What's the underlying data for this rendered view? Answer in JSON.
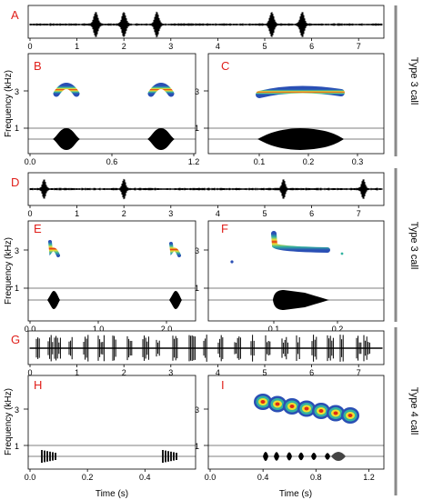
{
  "figure": {
    "panel_letters": [
      "A",
      "B",
      "C",
      "D",
      "E",
      "F",
      "G",
      "H",
      "I"
    ],
    "y_axis_label": "Frequency (kHz)",
    "x_axis_label": "Time (s)",
    "side_labels": [
      "Type 3 call",
      "Type 3 call",
      "Type 4 call"
    ],
    "colors": {
      "panel_letter": "#e0201b",
      "waveform": "#000000",
      "bracket": "#8a8a8a",
      "axis": "#000000"
    },
    "freq_ticks": [
      "3",
      "1"
    ]
  },
  "chart_data": [
    {
      "panel": "A",
      "type": "waveform",
      "xlim": [
        0,
        7.5
      ],
      "x_ticks": [
        "0",
        "1",
        "2",
        "3",
        "4",
        "5",
        "6",
        "7"
      ],
      "bursts_at_s": [
        1.4,
        2.0,
        2.7,
        5.15,
        5.8
      ]
    },
    {
      "panel": "B",
      "type": "spectrogram",
      "xlim": [
        0,
        1.2
      ],
      "x_ticks": [
        "0.0",
        "0.6",
        "1.2"
      ],
      "y_ticks": [
        "3",
        "1"
      ],
      "calls_at_s": [
        0.27,
        0.93
      ],
      "peak_freq_khz": 3.1
    },
    {
      "panel": "C",
      "type": "spectrogram",
      "xlim": [
        0,
        0.35
      ],
      "x_ticks": [
        "0.1",
        "0.2",
        "0.3"
      ],
      "call_span_s": [
        0.1,
        0.27
      ],
      "peak_freq_khz": 2.8
    },
    {
      "panel": "D",
      "type": "waveform",
      "xlim": [
        0,
        7.5
      ],
      "x_ticks": [
        "0",
        "1",
        "2",
        "3",
        "4",
        "5",
        "6",
        "7"
      ],
      "bursts_at_s": [
        0.3,
        2.0,
        5.4,
        7.1
      ]
    },
    {
      "panel": "E",
      "type": "spectrogram",
      "xlim": [
        0,
        2.4
      ],
      "x_ticks": [
        "0.0",
        "1.0",
        "2.0"
      ],
      "y_ticks": [
        "3",
        "1"
      ],
      "calls_at_s": [
        0.2,
        2.0
      ],
      "peak_freq_khz": 3.2
    },
    {
      "panel": "F",
      "type": "spectrogram",
      "xlim": [
        0,
        0.27
      ],
      "x_ticks": [
        "0.1",
        "0.2"
      ],
      "call_span_s": [
        0.1,
        0.23
      ],
      "peak_freq_khz": 3.0
    },
    {
      "panel": "G",
      "type": "waveform",
      "xlim": [
        0,
        7.5
      ],
      "x_ticks": [
        "0",
        "1",
        "2",
        "3",
        "4",
        "5",
        "6",
        "7"
      ]
    },
    {
      "panel": "H",
      "type": "spectrogram",
      "xlim": [
        0,
        0.57
      ],
      "x_ticks": [
        "0.0",
        "0.2",
        "0.4"
      ],
      "y_ticks": [
        "3",
        "1"
      ],
      "calls_at_s": [
        0.07,
        0.5
      ],
      "peak_freq_khz": 2.8
    },
    {
      "panel": "I",
      "type": "spectrogram",
      "xlim": [
        0,
        1.3
      ],
      "x_ticks": [
        "0.0",
        "0.4",
        "0.8",
        "1.2"
      ],
      "call_span_s": [
        0.3,
        1.0
      ],
      "peak_freq_khz": 2.9
    }
  ]
}
